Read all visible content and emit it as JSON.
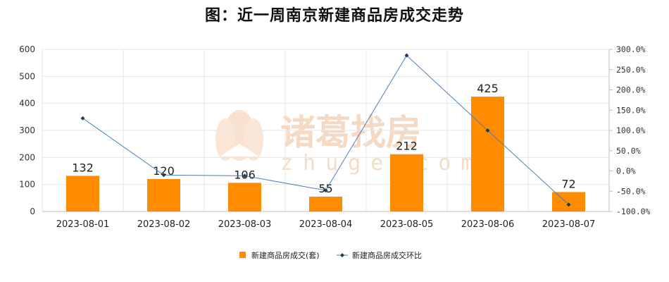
{
  "title": "图：近一周南京新建商品房成交走势",
  "watermark": {
    "brand": "诸葛找房",
    "domain": "zhuge.com"
  },
  "colors": {
    "bar": "#ff8c00",
    "line": "#4a7ebb",
    "marker": "#1f3b5c",
    "grid": "#e6e6e6",
    "axis": "#bfbfbf"
  },
  "chart_data": {
    "type": "bar",
    "title": "图：近一周南京新建商品房成交走势",
    "categories": [
      "2023-08-01",
      "2023-08-02",
      "2023-08-03",
      "2023-08-04",
      "2023-08-05",
      "2023-08-06",
      "2023-08-07"
    ],
    "series": [
      {
        "name": "新建商品房成交(套)",
        "type": "bar",
        "axis": "left",
        "values": [
          132,
          120,
          106,
          55,
          212,
          425,
          72
        ]
      },
      {
        "name": "新建商品房成交环比",
        "type": "line",
        "axis": "right",
        "values": [
          130,
          -10,
          -12,
          -48,
          285,
          100,
          -83
        ]
      }
    ],
    "y_left": {
      "min": 0,
      "max": 600,
      "ticks": [
        "0",
        "100",
        "200",
        "300",
        "400",
        "500",
        "600"
      ]
    },
    "y_right": {
      "min": -100,
      "max": 300,
      "ticks": [
        "-100.0%",
        "-50.0%",
        "0.0%",
        "50.0%",
        "100.0%",
        "150.0%",
        "200.0%",
        "250.0%",
        "300.0%"
      ]
    },
    "legend_position": "bottom-center",
    "grid": true
  }
}
